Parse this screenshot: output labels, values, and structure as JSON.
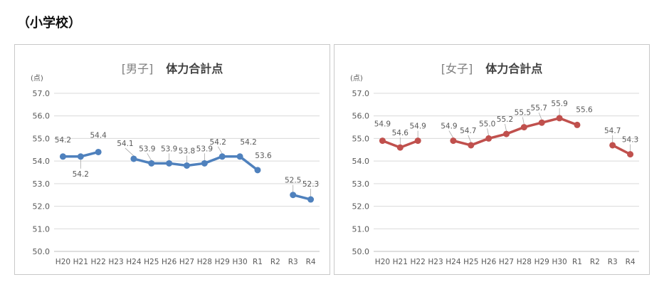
{
  "page": {
    "heading": "（小学校）"
  },
  "chart_data": [
    {
      "type": "line",
      "title_bracket": "[男子]",
      "title": "体力合計点",
      "unit_label": "(点)",
      "categories": [
        "H20",
        "H21",
        "H22",
        "H23",
        "H24",
        "H25",
        "H26",
        "H27",
        "H28",
        "H29",
        "H30",
        "R1",
        "R2",
        "R3",
        "R4"
      ],
      "series": [
        {
          "values": [
            54.2,
            54.2,
            54.4,
            null,
            54.1,
            53.9,
            53.9,
            53.8,
            53.9,
            54.2,
            54.2,
            53.6,
            null,
            52.5,
            52.3
          ]
        }
      ],
      "y_ticks": [
        "57.0",
        "56.0",
        "55.0",
        "54.0",
        "53.0",
        "52.0",
        "51.0",
        "50.0"
      ],
      "ylim": [
        50,
        57
      ],
      "line_color": "#4f81bd",
      "grid": true
    },
    {
      "type": "line",
      "title_bracket": "[女子]",
      "title": "体力合計点",
      "unit_label": "(点)",
      "categories": [
        "H20",
        "H21",
        "H22",
        "H23",
        "H24",
        "H25",
        "H26",
        "H27",
        "H28",
        "H29",
        "H30",
        "R1",
        "R2",
        "R3",
        "R4"
      ],
      "series": [
        {
          "values": [
            54.9,
            54.6,
            54.9,
            null,
            54.9,
            54.7,
            55.0,
            55.2,
            55.5,
            55.7,
            55.9,
            55.6,
            null,
            54.7,
            54.3
          ]
        }
      ],
      "y_ticks": [
        "57.0",
        "56.0",
        "55.0",
        "54.0",
        "53.0",
        "52.0",
        "51.0",
        "50.0"
      ],
      "ylim": [
        50,
        57
      ],
      "line_color": "#c0504d",
      "grid": true
    }
  ]
}
